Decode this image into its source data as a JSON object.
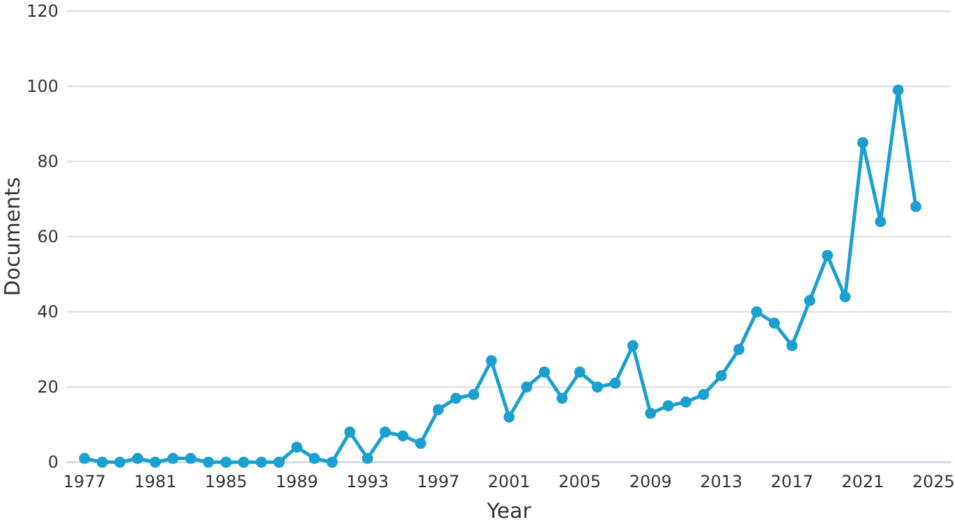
{
  "chart_data": {
    "type": "line",
    "xlabel": "Year",
    "ylabel": "Documents",
    "x": [
      1977,
      1978,
      1979,
      1980,
      1981,
      1982,
      1983,
      1984,
      1985,
      1986,
      1987,
      1988,
      1989,
      1990,
      1991,
      1992,
      1993,
      1994,
      1995,
      1996,
      1997,
      1998,
      1999,
      2000,
      2001,
      2002,
      2003,
      2004,
      2005,
      2006,
      2007,
      2008,
      2009,
      2010,
      2011,
      2012,
      2013,
      2014,
      2015,
      2016,
      2017,
      2018,
      2019,
      2020,
      2021,
      2022,
      2023,
      2024
    ],
    "series": [
      {
        "color": "#1a9fd1",
        "values": [
          1,
          0,
          0,
          1,
          0,
          1,
          1,
          0,
          0,
          0,
          0,
          0,
          4,
          1,
          0,
          8,
          1,
          8,
          7,
          5,
          14,
          17,
          18,
          27,
          12,
          20,
          24,
          17,
          24,
          20,
          21,
          31,
          13,
          15,
          16,
          18,
          23,
          30,
          40,
          37,
          31,
          43,
          55,
          44,
          85,
          64,
          99,
          68
        ]
      }
    ],
    "xlim": [
      1976,
      2026
    ],
    "xticks": [
      1977,
      1981,
      1985,
      1989,
      1993,
      1997,
      2001,
      2005,
      2009,
      2013,
      2017,
      2021,
      2025
    ],
    "ylim": [
      0,
      120
    ],
    "yticks": [
      0,
      20,
      40,
      60,
      80,
      100,
      120
    ],
    "grid": "y",
    "marker": "circle",
    "line_style": "solid"
  }
}
